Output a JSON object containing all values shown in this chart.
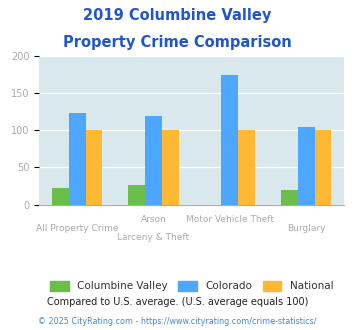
{
  "title_line1": "2019 Columbine Valley",
  "title_line2": "Property Crime Comparison",
  "columbine_values": [
    23,
    27,
    0,
    20
  ],
  "colorado_values": [
    123,
    120,
    175,
    104
  ],
  "national_values": [
    100,
    100,
    100,
    100
  ],
  "columbine_color": "#6abf4b",
  "colorado_color": "#4da6ff",
  "national_color": "#ffb833",
  "bg_color": "#d8e8ec",
  "ylim": [
    0,
    200
  ],
  "yticks": [
    0,
    50,
    100,
    150,
    200
  ],
  "legend_labels": [
    "Columbine Valley",
    "Colorado",
    "National"
  ],
  "footnote1": "Compared to U.S. average. (U.S. average equals 100)",
  "footnote2": "© 2025 CityRating.com - https://www.cityrating.com/crime-statistics/",
  "title_color": "#2255cc",
  "footnote1_color": "#222222",
  "footnote2_color": "#4488cc",
  "tick_label_color": "#aaaaaa",
  "x_label_color": "#aaaaaa",
  "bar_width": 0.22
}
